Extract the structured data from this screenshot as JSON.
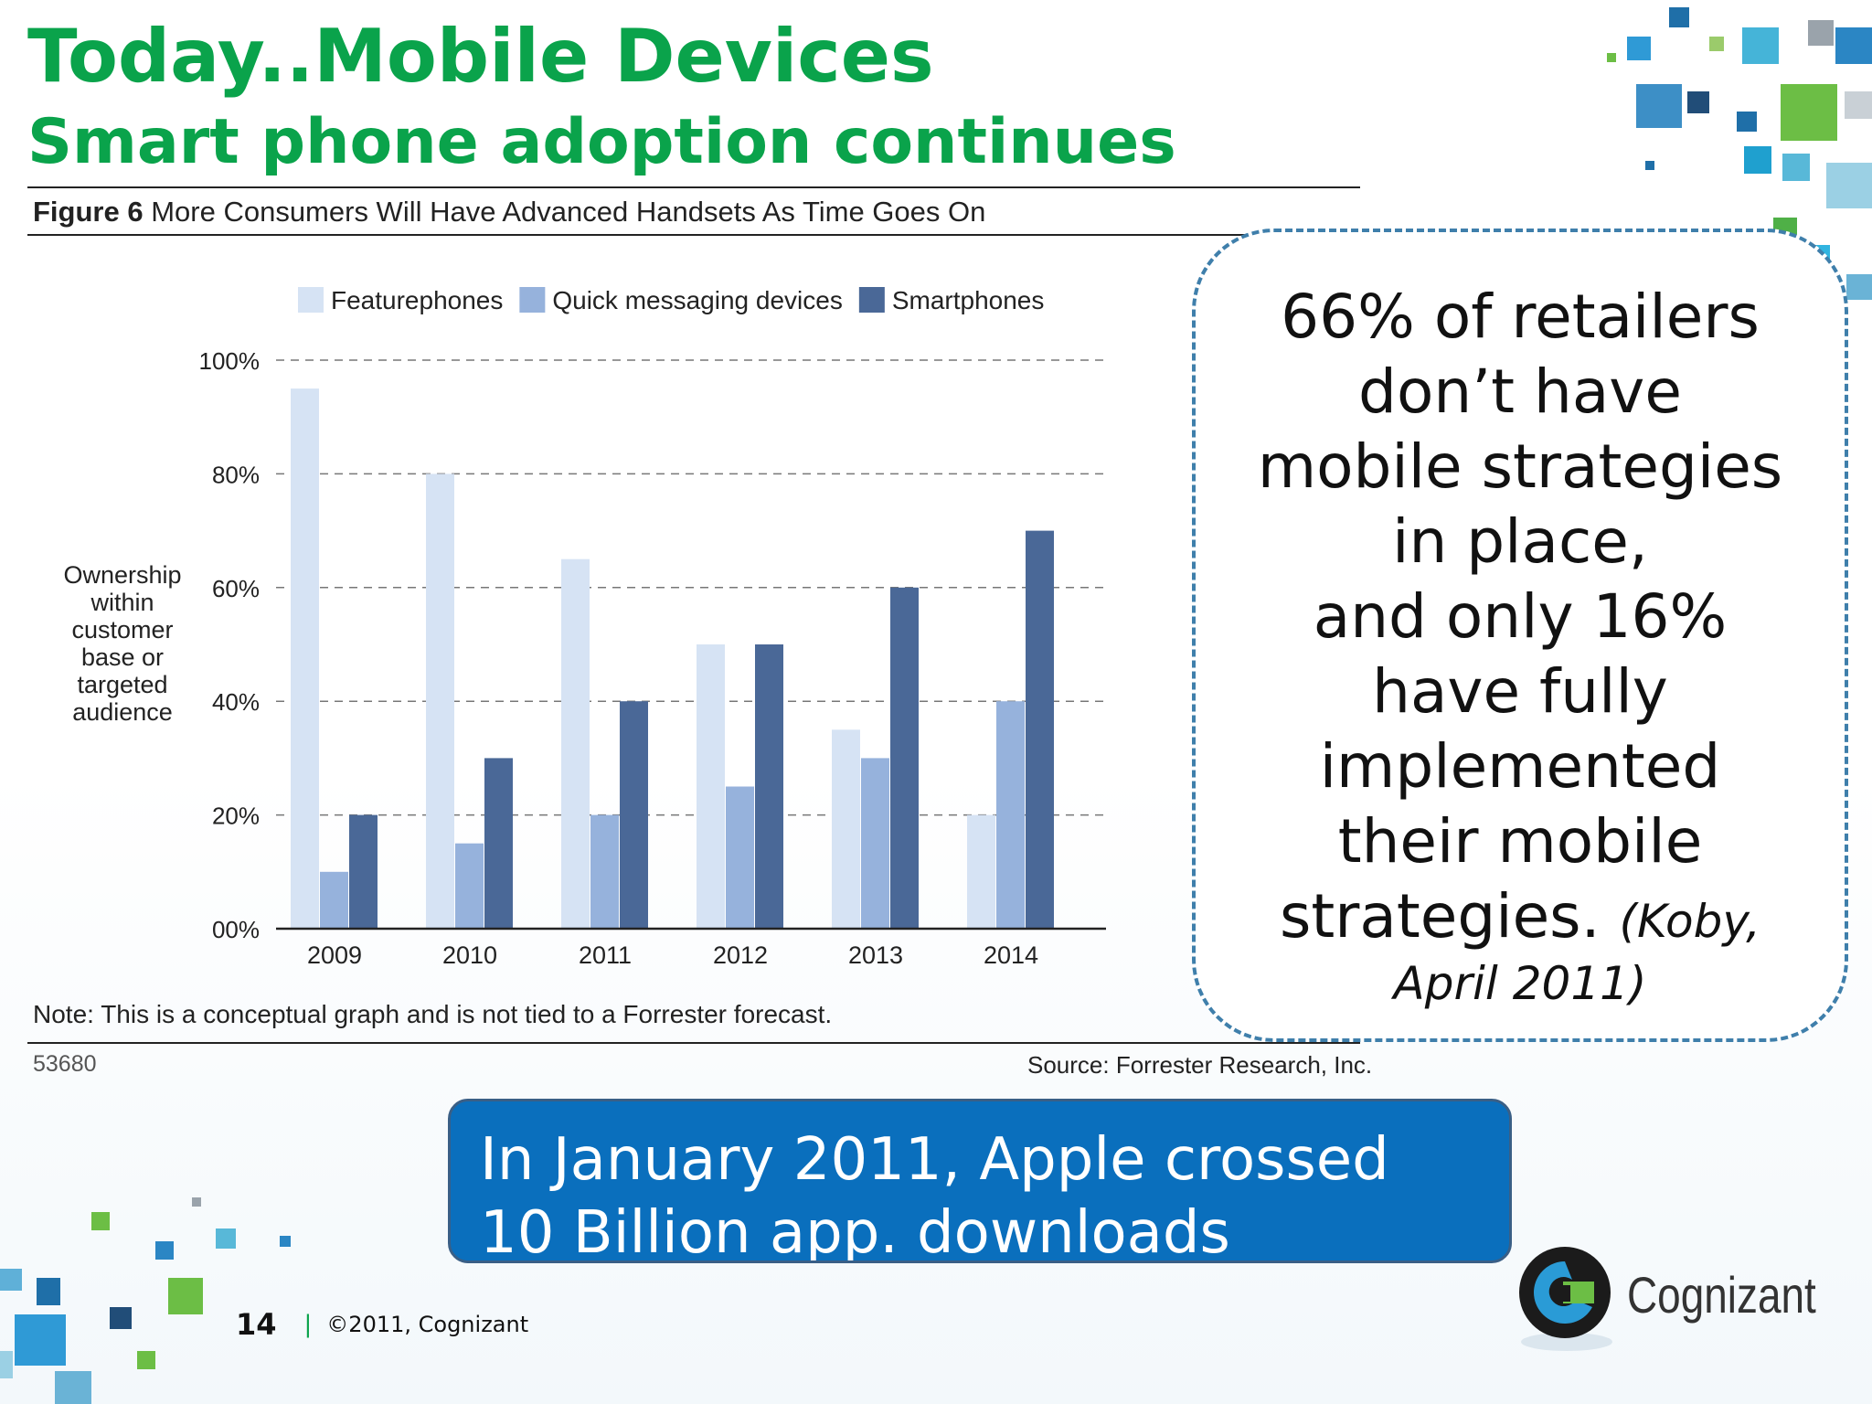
{
  "slide": {
    "title": "Today..Mobile Devices",
    "subtitle": "Smart phone adoption continues",
    "page_number": "14",
    "copyright": "©2011, Cognizant",
    "footer_separator": "|"
  },
  "figure": {
    "label": "Figure 6",
    "caption": " More Consumers Will Have Advanced Handsets As Time Goes On",
    "note": "Note: This is a conceptual graph and is not tied to a Forrester forecast.",
    "figure_id": "53680",
    "source": "Source: Forrester Research, Inc."
  },
  "chart_data": {
    "type": "bar",
    "title": "More Consumers Will Have Advanced Handsets As Time Goes On",
    "categories": [
      "2009",
      "2010",
      "2011",
      "2012",
      "2013",
      "2014"
    ],
    "series": [
      {
        "name": "Featurephones",
        "color": "#d6e3f4",
        "values": [
          95,
          80,
          65,
          50,
          35,
          20
        ]
      },
      {
        "name": "Quick messaging devices",
        "color": "#96b2dc",
        "values": [
          10,
          15,
          20,
          25,
          30,
          40
        ]
      },
      {
        "name": "Smartphones",
        "color": "#4a6897",
        "values": [
          20,
          30,
          40,
          50,
          60,
          70
        ]
      }
    ],
    "ylabel_lines": [
      "Ownership",
      "within",
      "customer",
      "base or",
      "targeted",
      "audience"
    ],
    "yticks": [
      0,
      20,
      40,
      60,
      80,
      100
    ],
    "ytick_labels": [
      "00%",
      "20%",
      "40%",
      "60%",
      "80%",
      "100%"
    ],
    "ylim": [
      0,
      100
    ],
    "grid": true,
    "legend_position": "top"
  },
  "callout": {
    "lines": [
      "66% of retailers",
      "don’t have",
      "mobile strategies",
      "in place,",
      "and only 16%",
      "have fully",
      "implemented",
      "their mobile"
    ],
    "last_line": "strategies.",
    "cite_start": "(Koby,",
    "cite_end": "April 2011)"
  },
  "banner": {
    "line1": "In January 2011, Apple crossed",
    "line2": "10 Billion app. downloads"
  },
  "logo": {
    "name": "Cognizant"
  },
  "colors": {
    "title_green": "#0aa34b",
    "banner_blue": "#0a6fbd",
    "callout_border": "#3f7fab"
  }
}
